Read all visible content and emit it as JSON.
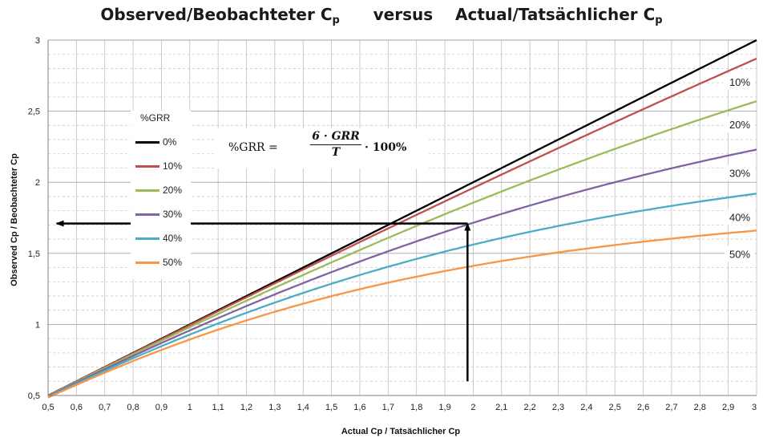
{
  "chart_data": {
    "type": "line",
    "title": {
      "part1": "Observed/Beobachteter C",
      "sub1": "p",
      "middle": "versus",
      "part2": "Actual/Tatsächlicher C",
      "sub2": "p"
    },
    "xlabel": "Actual Cp / Tatsächlicher Cp",
    "ylabel": "Observed Cp / Beobachteter Cp",
    "xlim": [
      0.5,
      3
    ],
    "ylim": [
      0.5,
      3
    ],
    "x_ticks": [
      0.5,
      0.6,
      0.7,
      0.8,
      0.9,
      1,
      1.1,
      1.2,
      1.3,
      1.4,
      1.5,
      1.6,
      1.7,
      1.8,
      1.9,
      2,
      2.1,
      2.2,
      2.3,
      2.4,
      2.5,
      2.6,
      2.7,
      2.8,
      2.9,
      3
    ],
    "x_tick_labels": [
      "0,5",
      "0,6",
      "0,7",
      "0,8",
      "0,9",
      "1",
      "1,1",
      "1,2",
      "1,3",
      "1,4",
      "1,5",
      "1,6",
      "1,7",
      "1,8",
      "1,9",
      "2",
      "2,1",
      "2,2",
      "2,3",
      "2,4",
      "2,5",
      "2,6",
      "2,7",
      "2,8",
      "2,9",
      "3"
    ],
    "y_ticks": [
      0.5,
      1,
      1.5,
      2,
      2.5,
      3
    ],
    "y_tick_labels": [
      "0,5",
      "1",
      "1,5",
      "2",
      "2,5",
      "3"
    ],
    "grid": true,
    "legend": {
      "title": "%GRR",
      "placement": "upper-left",
      "entries": [
        "0%",
        "10%",
        "20%",
        "30%",
        "40%",
        "50%"
      ]
    },
    "series": [
      {
        "name": "0%",
        "grr": 0.0,
        "color": "#000000",
        "x": [
          0.5,
          1.0,
          1.5,
          2.0,
          2.5,
          3.0
        ],
        "y": [
          0.5,
          1.0,
          1.5,
          2.0,
          2.5,
          3.0
        ]
      },
      {
        "name": "10%",
        "grr": 0.1,
        "color": "#c0504d",
        "x": [
          0.5,
          1.0,
          1.5,
          2.0,
          2.5,
          3.0
        ],
        "y": [
          0.498,
          0.981,
          1.44,
          1.86,
          2.25,
          2.87
        ]
      },
      {
        "name": "20%",
        "grr": 0.2,
        "color": "#9bbb59",
        "x": [
          0.5,
          1.0,
          1.5,
          2.0,
          2.5,
          3.0
        ],
        "y": [
          0.49,
          0.959,
          1.39,
          1.8,
          2.26,
          2.57
        ]
      },
      {
        "name": "30%",
        "grr": 0.3,
        "color": "#8064a2",
        "x": [
          0.5,
          1.0,
          1.5,
          2.0,
          2.5,
          3.0
        ],
        "y": [
          0.49,
          0.93,
          1.33,
          1.72,
          2.0,
          2.23
        ]
      },
      {
        "name": "40%",
        "grr": 0.4,
        "color": "#4bacc6",
        "x": [
          0.5,
          1.0,
          1.5,
          2.0,
          2.5,
          3.0
        ],
        "y": [
          0.48,
          0.9,
          1.26,
          1.55,
          1.74,
          1.92
        ]
      },
      {
        "name": "50%",
        "grr": 0.5,
        "color": "#f79646",
        "x": [
          0.5,
          1.0,
          1.5,
          2.0,
          2.5,
          3.0
        ],
        "y": [
          0.48,
          0.86,
          1.16,
          1.42,
          1.56,
          1.66
        ]
      }
    ],
    "curve_labels": [
      "10%",
      "20%",
      "30%",
      "40%",
      "50%"
    ],
    "formula": {
      "lhs": "%GRR =",
      "numerator": "6 · GRR",
      "denominator": "T",
      "rhs": "· 100%"
    },
    "annotation_arrows": [
      {
        "from": [
          1.98,
          0.6
        ],
        "to": [
          1.98,
          1.71
        ]
      },
      {
        "from": [
          1.98,
          1.71
        ],
        "to": [
          0.53,
          1.71
        ]
      }
    ]
  }
}
